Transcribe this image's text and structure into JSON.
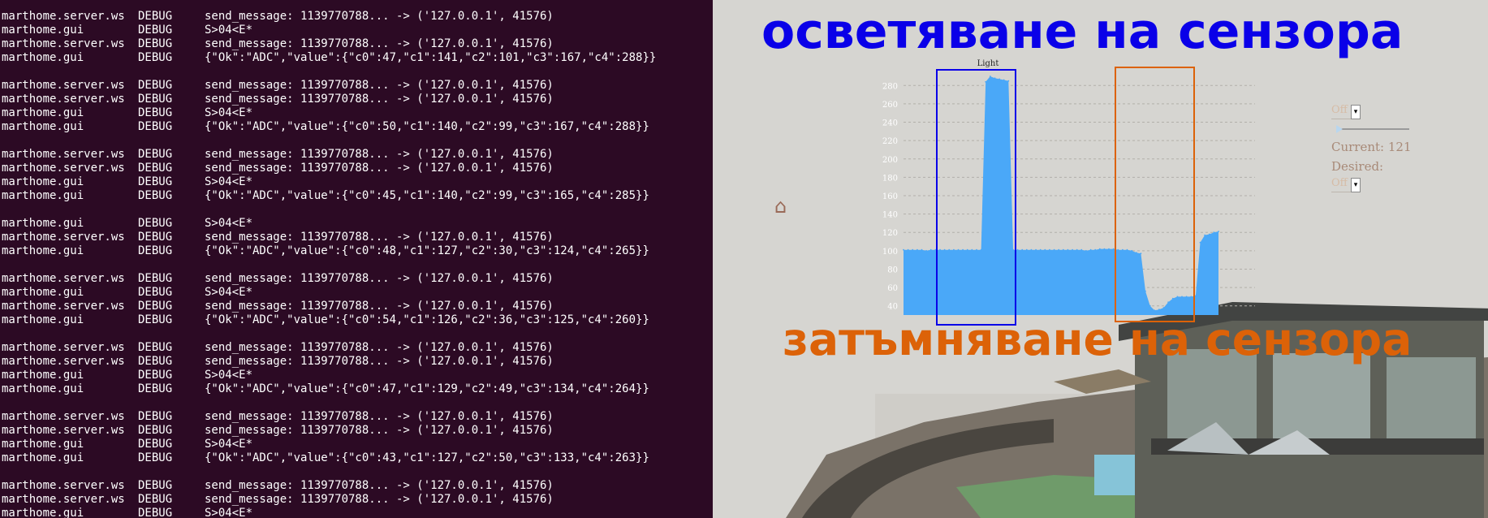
{
  "terminal": {
    "lines": [
      [
        "marthome.server.ws",
        "DEBUG",
        "send_message: 1139770788... -> ('127.0.0.1', 41576)"
      ],
      [
        "marthome.gui",
        "DEBUG",
        "S>04<E*"
      ],
      [
        "marthome.server.ws",
        "DEBUG",
        "send_message: 1139770788... -> ('127.0.0.1', 41576)"
      ],
      [
        "marthome.gui",
        "DEBUG",
        "{\"Ok\":\"ADC\",\"value\":{\"c0\":47,\"c1\":141,\"c2\":101,\"c3\":167,\"c4\":288}}"
      ],
      [
        "",
        "",
        ""
      ],
      [
        "marthome.server.ws",
        "DEBUG",
        "send_message: 1139770788... -> ('127.0.0.1', 41576)"
      ],
      [
        "marthome.server.ws",
        "DEBUG",
        "send_message: 1139770788... -> ('127.0.0.1', 41576)"
      ],
      [
        "marthome.gui",
        "DEBUG",
        "S>04<E*"
      ],
      [
        "marthome.gui",
        "DEBUG",
        "{\"Ok\":\"ADC\",\"value\":{\"c0\":50,\"c1\":140,\"c2\":99,\"c3\":167,\"c4\":288}}"
      ],
      [
        "",
        "",
        ""
      ],
      [
        "marthome.server.ws",
        "DEBUG",
        "send_message: 1139770788... -> ('127.0.0.1', 41576)"
      ],
      [
        "marthome.server.ws",
        "DEBUG",
        "send_message: 1139770788... -> ('127.0.0.1', 41576)"
      ],
      [
        "marthome.gui",
        "DEBUG",
        "S>04<E*"
      ],
      [
        "marthome.gui",
        "DEBUG",
        "{\"Ok\":\"ADC\",\"value\":{\"c0\":45,\"c1\":140,\"c2\":99,\"c3\":165,\"c4\":285}}"
      ],
      [
        "",
        "",
        ""
      ],
      [
        "marthome.gui",
        "DEBUG",
        "S>04<E*"
      ],
      [
        "marthome.server.ws",
        "DEBUG",
        "send_message: 1139770788... -> ('127.0.0.1', 41576)"
      ],
      [
        "marthome.gui",
        "DEBUG",
        "{\"Ok\":\"ADC\",\"value\":{\"c0\":48,\"c1\":127,\"c2\":30,\"c3\":124,\"c4\":265}}"
      ],
      [
        "",
        "",
        ""
      ],
      [
        "marthome.server.ws",
        "DEBUG",
        "send_message: 1139770788... -> ('127.0.0.1', 41576)"
      ],
      [
        "marthome.gui",
        "DEBUG",
        "S>04<E*"
      ],
      [
        "marthome.server.ws",
        "DEBUG",
        "send_message: 1139770788... -> ('127.0.0.1', 41576)"
      ],
      [
        "marthome.gui",
        "DEBUG",
        "{\"Ok\":\"ADC\",\"value\":{\"c0\":54,\"c1\":126,\"c2\":36,\"c3\":125,\"c4\":260}}"
      ],
      [
        "",
        "",
        ""
      ],
      [
        "marthome.server.ws",
        "DEBUG",
        "send_message: 1139770788... -> ('127.0.0.1', 41576)"
      ],
      [
        "marthome.server.ws",
        "DEBUG",
        "send_message: 1139770788... -> ('127.0.0.1', 41576)"
      ],
      [
        "marthome.gui",
        "DEBUG",
        "S>04<E*"
      ],
      [
        "marthome.gui",
        "DEBUG",
        "{\"Ok\":\"ADC\",\"value\":{\"c0\":47,\"c1\":129,\"c2\":49,\"c3\":134,\"c4\":264}}"
      ],
      [
        "",
        "",
        ""
      ],
      [
        "marthome.server.ws",
        "DEBUG",
        "send_message: 1139770788... -> ('127.0.0.1', 41576)"
      ],
      [
        "marthome.server.ws",
        "DEBUG",
        "send_message: 1139770788... -> ('127.0.0.1', 41576)"
      ],
      [
        "marthome.gui",
        "DEBUG",
        "S>04<E*"
      ],
      [
        "marthome.gui",
        "DEBUG",
        "{\"Ok\":\"ADC\",\"value\":{\"c0\":43,\"c1\":127,\"c2\":50,\"c3\":133,\"c4\":263}}"
      ],
      [
        "",
        "",
        ""
      ],
      [
        "marthome.server.ws",
        "DEBUG",
        "send_message: 1139770788... -> ('127.0.0.1', 41576)"
      ],
      [
        "marthome.server.ws",
        "DEBUG",
        "send_message: 1139770788... -> ('127.0.0.1', 41576)"
      ],
      [
        "marthome.gui",
        "DEBUG",
        "S>04<E*"
      ]
    ]
  },
  "annotations": {
    "top": "осветяване на сензора",
    "top_color": "#0a00e8",
    "bottom": "затъмняване на сензора",
    "bottom_color": "#dc6208"
  },
  "controls": {
    "mode_select": "Off",
    "current": "Current: 121",
    "desired_label": "Desired:",
    "desired_select": "Off",
    "slider_value": 0,
    "home_icon": "home-icon"
  },
  "chart_data": {
    "type": "area",
    "title": "Light",
    "y_ticks": [
      "40",
      "60",
      "80",
      "100",
      "120",
      "140",
      "160",
      "180",
      "200",
      "220",
      "240",
      "260",
      "280"
    ],
    "ylim": [
      30,
      290
    ],
    "grid": true,
    "fill_color": "#4aa8f8",
    "values": [
      101,
      101,
      101,
      101,
      101,
      100,
      101,
      101,
      101,
      101,
      101,
      101,
      101,
      101,
      101,
      101,
      101,
      101,
      284,
      290,
      288,
      287,
      286,
      285,
      101,
      101,
      101,
      101,
      101,
      101,
      101,
      101,
      101,
      101,
      101,
      101,
      101,
      101,
      101,
      101,
      100,
      101,
      101,
      102,
      102,
      102,
      102,
      101,
      101,
      101,
      100,
      98,
      97,
      56,
      40,
      35,
      36,
      38,
      44,
      48,
      50,
      50,
      50,
      50,
      51,
      109,
      117,
      118,
      120,
      121
    ]
  }
}
